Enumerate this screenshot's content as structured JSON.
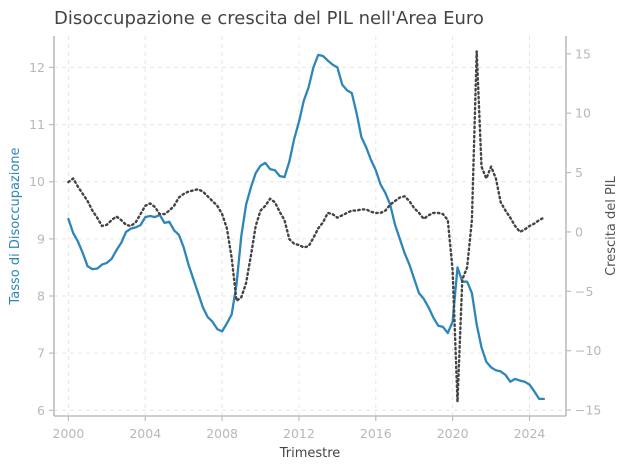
{
  "chart_data": {
    "type": "line",
    "title": "Disoccupazione e crescita del PIL nell'Area Euro",
    "xlabel": "Trimestre",
    "ylabel_left": "Tasso di Disoccupazione",
    "ylabel_right": "Crescita del PIL",
    "xlim": [
      1999.25,
      2025.9
    ],
    "ylim_left": [
      5.9,
      12.55
    ],
    "ylim_right": [
      -15.5,
      16.5
    ],
    "x_ticks": [
      2000,
      2004,
      2008,
      2012,
      2016,
      2020,
      2024
    ],
    "y_ticks_left": [
      6,
      7,
      8,
      9,
      10,
      11,
      12
    ],
    "y_ticks_right": [
      -15,
      -10,
      -5,
      0,
      5,
      10,
      15
    ],
    "grid": true,
    "colors": {
      "unemployment": "#2e86b8",
      "gdp": "#444444",
      "spine": "#bdbdbd"
    },
    "series": [
      {
        "axis": "left",
        "style": "solid",
        "x": [
          2000.0,
          2000.25,
          2000.5,
          2000.75,
          2001.0,
          2001.25,
          2001.5,
          2001.75,
          2002.0,
          2002.25,
          2002.5,
          2002.75,
          2003.0,
          2003.25,
          2003.5,
          2003.75,
          2004.0,
          2004.25,
          2004.5,
          2004.75,
          2005.0,
          2005.25,
          2005.5,
          2005.75,
          2006.0,
          2006.25,
          2006.5,
          2006.75,
          2007.0,
          2007.25,
          2007.5,
          2007.75,
          2008.0,
          2008.25,
          2008.5,
          2008.75,
          2009.0,
          2009.25,
          2009.5,
          2009.75,
          2010.0,
          2010.25,
          2010.5,
          2010.75,
          2011.0,
          2011.25,
          2011.5,
          2011.75,
          2012.0,
          2012.25,
          2012.5,
          2012.75,
          2013.0,
          2013.25,
          2013.5,
          2013.75,
          2014.0,
          2014.25,
          2014.5,
          2014.75,
          2015.0,
          2015.25,
          2015.5,
          2015.75,
          2016.0,
          2016.25,
          2016.5,
          2016.75,
          2017.0,
          2017.25,
          2017.5,
          2017.75,
          2018.0,
          2018.25,
          2018.5,
          2018.75,
          2019.0,
          2019.25,
          2019.5,
          2019.75,
          2020.0,
          2020.25,
          2020.5,
          2020.75,
          2021.0,
          2021.25,
          2021.5,
          2021.75,
          2022.0,
          2022.25,
          2022.5,
          2022.75,
          2023.0,
          2023.25,
          2023.5,
          2023.75,
          2024.0,
          2024.25,
          2024.5,
          2024.75
        ],
        "values": [
          9.35,
          9.1,
          8.95,
          8.75,
          8.52,
          8.47,
          8.48,
          8.55,
          8.58,
          8.65,
          8.8,
          8.93,
          9.12,
          9.18,
          9.2,
          9.24,
          9.38,
          9.4,
          9.38,
          9.42,
          9.28,
          9.3,
          9.15,
          9.07,
          8.85,
          8.55,
          8.3,
          8.05,
          7.8,
          7.63,
          7.55,
          7.42,
          7.38,
          7.52,
          7.68,
          8.2,
          9.05,
          9.6,
          9.9,
          10.15,
          10.28,
          10.33,
          10.22,
          10.2,
          10.1,
          10.08,
          10.35,
          10.75,
          11.05,
          11.42,
          11.65,
          12.0,
          12.22,
          12.2,
          12.12,
          12.05,
          12.0,
          11.7,
          11.6,
          11.55,
          11.2,
          10.78,
          10.6,
          10.38,
          10.2,
          9.95,
          9.8,
          9.6,
          9.25,
          9.0,
          8.75,
          8.55,
          8.3,
          8.05,
          7.95,
          7.8,
          7.62,
          7.48,
          7.46,
          7.35,
          7.55,
          8.5,
          8.25,
          8.25,
          8.05,
          7.5,
          7.1,
          6.85,
          6.75,
          6.7,
          6.68,
          6.62,
          6.5,
          6.55,
          6.52,
          6.5,
          6.45,
          6.33,
          6.2,
          6.2
        ],
        "x_end": 2024.75
      },
      {
        "axis": "right",
        "style": "dotted",
        "x": [
          2000.0,
          2000.25,
          2000.5,
          2000.75,
          2001.0,
          2001.25,
          2001.5,
          2001.75,
          2002.0,
          2002.25,
          2002.5,
          2002.75,
          2003.0,
          2003.25,
          2003.5,
          2003.75,
          2004.0,
          2004.25,
          2004.5,
          2004.75,
          2005.0,
          2005.25,
          2005.5,
          2005.75,
          2006.0,
          2006.25,
          2006.5,
          2006.75,
          2007.0,
          2007.25,
          2007.5,
          2007.75,
          2008.0,
          2008.25,
          2008.5,
          2008.75,
          2009.0,
          2009.25,
          2009.5,
          2009.75,
          2010.0,
          2010.25,
          2010.5,
          2010.75,
          2011.0,
          2011.25,
          2011.5,
          2011.75,
          2012.0,
          2012.25,
          2012.5,
          2012.75,
          2013.0,
          2013.25,
          2013.5,
          2013.75,
          2014.0,
          2014.25,
          2014.5,
          2014.75,
          2015.0,
          2015.25,
          2015.5,
          2015.75,
          2016.0,
          2016.25,
          2016.5,
          2016.75,
          2017.0,
          2017.25,
          2017.5,
          2017.75,
          2018.0,
          2018.25,
          2018.5,
          2018.75,
          2019.0,
          2019.25,
          2019.5,
          2019.75,
          2020.0,
          2020.25,
          2020.5,
          2020.75,
          2021.0,
          2021.25,
          2021.5,
          2021.75,
          2022.0,
          2022.25,
          2022.5,
          2022.75,
          2023.0,
          2023.25,
          2023.5,
          2023.75,
          2024.0,
          2024.25,
          2024.5,
          2024.75
        ],
        "values": [
          4.2,
          4.5,
          3.8,
          3.2,
          2.6,
          1.8,
          1.2,
          0.5,
          0.6,
          1.0,
          1.3,
          1.0,
          0.6,
          0.5,
          0.8,
          1.5,
          2.2,
          2.4,
          2.1,
          1.5,
          1.5,
          1.8,
          2.2,
          2.9,
          3.2,
          3.4,
          3.5,
          3.6,
          3.4,
          3.0,
          2.6,
          2.2,
          1.5,
          0.3,
          -2.2,
          -5.8,
          -5.5,
          -4.3,
          -2.0,
          0.5,
          1.8,
          2.2,
          2.8,
          2.5,
          1.7,
          1.0,
          -0.6,
          -1.0,
          -1.1,
          -1.3,
          -1.2,
          -0.5,
          0.3,
          0.8,
          1.6,
          1.5,
          1.2,
          1.4,
          1.6,
          1.8,
          1.8,
          1.9,
          1.9,
          1.7,
          1.6,
          1.6,
          1.8,
          2.3,
          2.6,
          2.9,
          3.0,
          2.6,
          2.0,
          1.6,
          1.1,
          1.4,
          1.6,
          1.6,
          1.5,
          1.0,
          -3.2,
          -14.3,
          -4.0,
          -3.0,
          1.0,
          15.2,
          5.5,
          4.5,
          5.5,
          4.5,
          2.5,
          1.8,
          1.2,
          0.5,
          0.0,
          0.2,
          0.5,
          0.7,
          1.0,
          1.2
        ],
        "x_end": 2024.75
      }
    ]
  }
}
